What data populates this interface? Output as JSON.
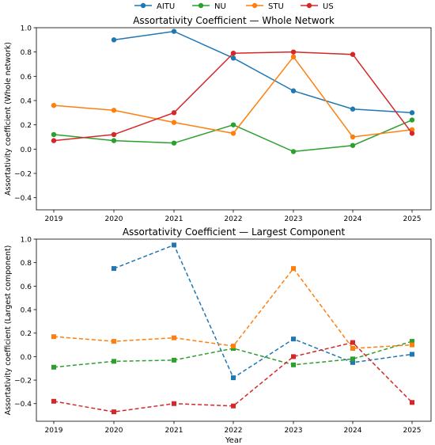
{
  "legend": {
    "placement": "top-center",
    "entries": [
      {
        "name": "AITU",
        "color": "#1f77b4"
      },
      {
        "name": "NU",
        "color": "#2ca02c"
      },
      {
        "name": "STU",
        "color": "#ff7f0e"
      },
      {
        "name": "US",
        "color": "#d62728"
      }
    ]
  },
  "chart_data": [
    {
      "type": "line",
      "title": "Assortativity Coefficient — Whole Network",
      "xlabel": "",
      "ylabel": "Assortativity coefficient (Whole network)",
      "x": [
        "2019",
        "2020",
        "2021",
        "2022",
        "2023",
        "2024",
        "2025"
      ],
      "xticks": [
        "2019",
        "2020",
        "2021",
        "2022",
        "2023",
        "2024",
        "2025"
      ],
      "ylim": [
        -0.5,
        1.0
      ],
      "yticks": [
        "1.0",
        "0.8",
        "0.6",
        "0.4",
        "0.2",
        "0.0",
        "−0.2",
        "−0.4"
      ],
      "grid": false,
      "line_style": "solid",
      "marker": "circle",
      "series": [
        {
          "name": "AITU",
          "color": "#1f77b4",
          "values": [
            null,
            0.9,
            0.97,
            0.75,
            0.48,
            0.33,
            0.3
          ]
        },
        {
          "name": "NU",
          "color": "#2ca02c",
          "values": [
            0.12,
            0.07,
            0.05,
            0.2,
            -0.02,
            0.03,
            0.24
          ]
        },
        {
          "name": "STU",
          "color": "#ff7f0e",
          "values": [
            0.36,
            0.32,
            0.22,
            0.13,
            0.76,
            0.1,
            0.16
          ]
        },
        {
          "name": "US",
          "color": "#d62728",
          "values": [
            0.07,
            0.12,
            0.3,
            0.79,
            0.8,
            0.78,
            0.13
          ]
        }
      ]
    },
    {
      "type": "line",
      "title": "Assortativity Coefficient — Largest Component",
      "xlabel": "Year",
      "ylabel": "Assortativity coefficient (Largest component)",
      "x": [
        "2019",
        "2020",
        "2021",
        "2022",
        "2023",
        "2024",
        "2025"
      ],
      "xticks": [
        "2019",
        "2020",
        "2021",
        "2022",
        "2023",
        "2024",
        "2025"
      ],
      "ylim": [
        -0.55,
        1.0
      ],
      "yticks": [
        "1.0",
        "0.8",
        "0.6",
        "0.4",
        "0.2",
        "0.0",
        "−0.2",
        "−0.4"
      ],
      "grid": false,
      "line_style": "dashed",
      "marker": "square",
      "series": [
        {
          "name": "AITU",
          "color": "#1f77b4",
          "values": [
            null,
            0.75,
            0.95,
            -0.18,
            0.15,
            -0.05,
            0.02
          ]
        },
        {
          "name": "NU",
          "color": "#2ca02c",
          "values": [
            -0.09,
            -0.04,
            -0.03,
            0.07,
            -0.07,
            -0.02,
            0.13
          ]
        },
        {
          "name": "STU",
          "color": "#ff7f0e",
          "values": [
            0.17,
            0.13,
            0.16,
            0.09,
            0.75,
            0.07,
            0.1
          ]
        },
        {
          "name": "US",
          "color": "#d62728",
          "values": [
            -0.38,
            -0.47,
            -0.4,
            -0.42,
            0.0,
            0.12,
            -0.39
          ]
        }
      ]
    }
  ]
}
